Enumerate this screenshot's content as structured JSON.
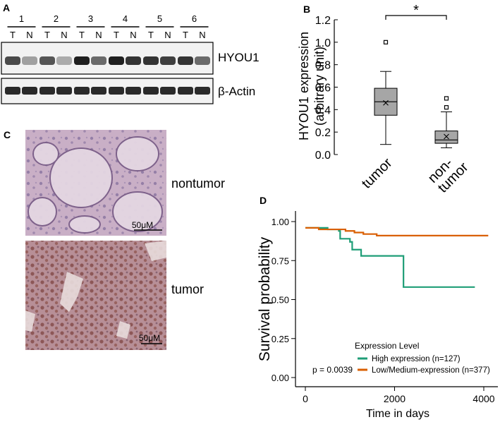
{
  "panel_labels": {
    "a": "A",
    "b": "B",
    "c": "C",
    "d": "D"
  },
  "blot": {
    "lanes": [
      "1",
      "2",
      "3",
      "4",
      "5",
      "6"
    ],
    "sample_labels": [
      "T",
      "N"
    ],
    "hyou1_intensity": [
      0.75,
      0.35,
      0.7,
      0.3,
      0.95,
      0.6,
      0.95,
      0.85,
      0.85,
      0.8,
      0.85,
      0.6
    ],
    "actin_intensity": [
      0.9,
      0.9,
      0.9,
      0.9,
      0.9,
      0.9,
      0.9,
      0.9,
      0.9,
      0.9,
      0.9,
      0.9
    ],
    "band_labels": [
      "HYOU1",
      "β-Actin"
    ]
  },
  "histology": {
    "labels": [
      "nontumor",
      "tumor"
    ],
    "scale_bar": "50μM",
    "colors": {
      "nontumor_bg": "#c9afc6",
      "tumor_bg": "#b78f97"
    }
  },
  "chart_data": [
    {
      "type": "box",
      "ylabel": "HYOU1 expression\n(arbitrary unit)",
      "categories": [
        "tumor",
        "non-\ntumor"
      ],
      "ylim": [
        0,
        1.2
      ],
      "yticks": [
        "0.0",
        "0.2",
        "0.4",
        "0.6",
        "0.8",
        "1.0",
        "1.2"
      ],
      "boxes": [
        {
          "min": 0.09,
          "q1": 0.35,
          "median": 0.47,
          "q3": 0.59,
          "max": 0.74,
          "mean": 0.46,
          "outliers": [
            1.0
          ]
        },
        {
          "min": 0.06,
          "q1": 0.1,
          "median": 0.13,
          "q3": 0.21,
          "max": 0.38,
          "mean": 0.16,
          "outliers": [
            0.42,
            0.5
          ]
        }
      ],
      "significance": "*",
      "box_color": "#a6a6a6"
    },
    {
      "type": "line",
      "xlabel": "Time in days",
      "ylabel": "Survival probability",
      "xlim": [
        -150,
        4150
      ],
      "ylim": [
        -0.05,
        1.05
      ],
      "xticks": [
        "0",
        "2000",
        "4000"
      ],
      "yticks": [
        "0.00",
        "0.25",
        "0.50",
        "0.75",
        "1.00"
      ],
      "legend_title": "Expression Level",
      "annotation": "p = 0.0039",
      "series": [
        {
          "name": "High expression (n=127)",
          "color": "#1f9e77",
          "steps": [
            [
              0,
              0.96
            ],
            [
              500,
              0.95
            ],
            [
              750,
              0.94
            ],
            [
              780,
              0.89
            ],
            [
              1000,
              0.87
            ],
            [
              1050,
              0.82
            ],
            [
              1250,
              0.78
            ],
            [
              2200,
              0.78
            ],
            [
              2200,
              0.58
            ],
            [
              3800,
              0.58
            ]
          ]
        },
        {
          "name": "Low/Medium-expression (n=377)",
          "color": "#d95f02",
          "steps": [
            [
              0,
              0.96
            ],
            [
              300,
              0.95
            ],
            [
              600,
              0.95
            ],
            [
              900,
              0.94
            ],
            [
              1100,
              0.93
            ],
            [
              1300,
              0.92
            ],
            [
              1600,
              0.91
            ],
            [
              2600,
              0.91
            ],
            [
              4100,
              0.91
            ]
          ]
        }
      ]
    }
  ]
}
